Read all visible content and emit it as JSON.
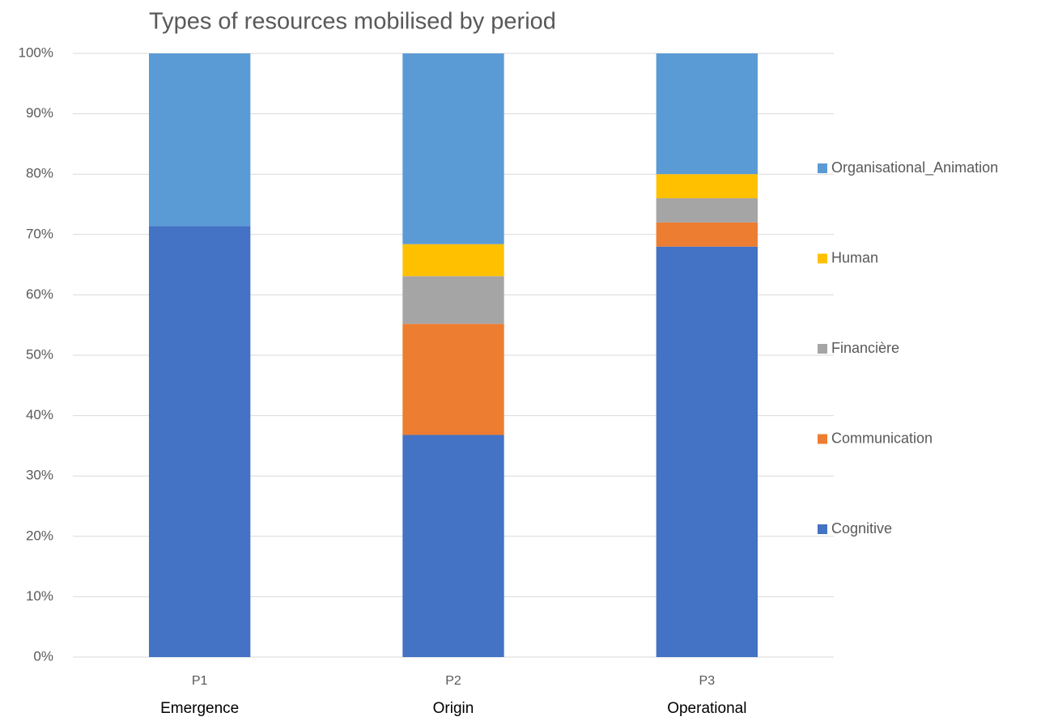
{
  "chart_data": {
    "type": "stacked_bar_100",
    "title": "Types of resources mobilised by period",
    "categories": [
      "P1",
      "P2",
      "P3"
    ],
    "period_names": [
      "Emergence",
      "Origin",
      "Operational"
    ],
    "series": [
      {
        "name": "Cognitive",
        "color": "#4472c4",
        "values": [
          71.4,
          36.8,
          68
        ]
      },
      {
        "name": "Communication",
        "color": "#ed7d31",
        "values": [
          0,
          18.4,
          4
        ]
      },
      {
        "name": "Financière",
        "color": "#a5a5a5",
        "values": [
          0,
          7.9,
          4
        ]
      },
      {
        "name": "Human",
        "color": "#ffc000",
        "values": [
          0,
          5.3,
          4
        ]
      },
      {
        "name": "Organisational_Animation",
        "color": "#5b9bd5",
        "values": [
          28.6,
          31.6,
          20
        ]
      }
    ],
    "ylim": [
      0,
      100
    ],
    "yticks": [
      {
        "value": 0,
        "label": "0%"
      },
      {
        "value": 10,
        "label": "10%"
      },
      {
        "value": 20,
        "label": "20%"
      },
      {
        "value": 30,
        "label": "30%"
      },
      {
        "value": 40,
        "label": "40%"
      },
      {
        "value": 50,
        "label": "50%"
      },
      {
        "value": 60,
        "label": "60%"
      },
      {
        "value": 70,
        "label": "70%"
      },
      {
        "value": 80,
        "label": "80%"
      },
      {
        "value": 90,
        "label": "90%"
      },
      {
        "value": 100,
        "label": "100%"
      }
    ],
    "grid": true,
    "legend": "right"
  }
}
